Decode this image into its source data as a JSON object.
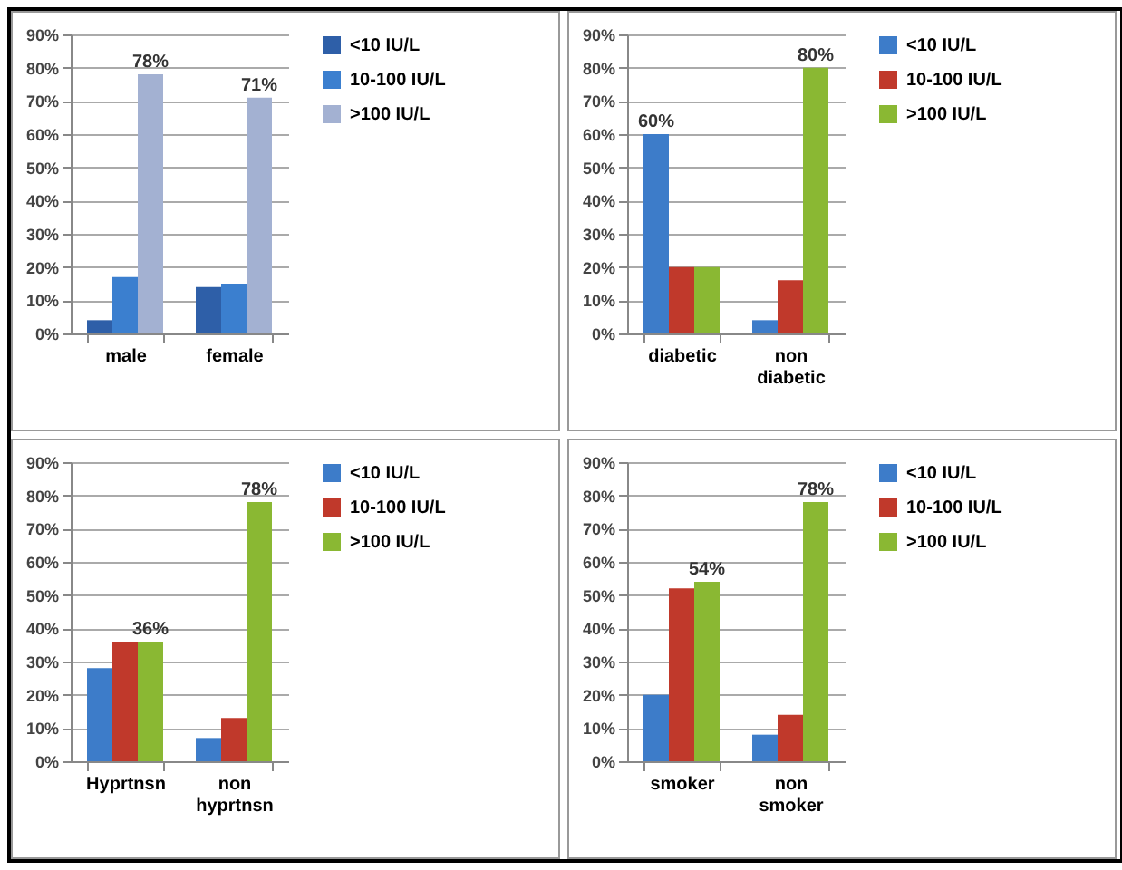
{
  "chart_data": [
    {
      "type": "bar",
      "categories": [
        "male",
        "female"
      ],
      "ylim": [
        0,
        90
      ],
      "yticks": [
        {
          "value": 0,
          "label": "0%"
        },
        {
          "value": 10,
          "label": "10%"
        },
        {
          "value": 20,
          "label": "20%"
        },
        {
          "value": 30,
          "label": "30%"
        },
        {
          "value": 40,
          "label": "40%"
        },
        {
          "value": 50,
          "label": "50%"
        },
        {
          "value": 60,
          "label": "60%"
        },
        {
          "value": 70,
          "label": "70%"
        },
        {
          "value": 80,
          "label": "80%"
        },
        {
          "value": 90,
          "label": "90%"
        }
      ],
      "grid": "y",
      "legend": "right",
      "series": [
        {
          "name": "<10 IU/L",
          "color": "#2e5fa8",
          "values": [
            4,
            14
          ]
        },
        {
          "name": "10-100 IU/L",
          "color": "#3b7fcf",
          "values": [
            17,
            15
          ]
        },
        {
          "name": ">100 IU/L",
          "color": "#a3b1d2",
          "values": [
            78,
            71
          ],
          "value_labels": [
            "78%",
            "71%"
          ]
        }
      ]
    },
    {
      "type": "bar",
      "categories": [
        "diabetic",
        "non diabetic"
      ],
      "ylim": [
        0,
        90
      ],
      "yticks": [
        {
          "value": 0,
          "label": "0%"
        },
        {
          "value": 10,
          "label": "10%"
        },
        {
          "value": 20,
          "label": "20%"
        },
        {
          "value": 30,
          "label": "30%"
        },
        {
          "value": 40,
          "label": "40%"
        },
        {
          "value": 50,
          "label": "50%"
        },
        {
          "value": 60,
          "label": "60%"
        },
        {
          "value": 70,
          "label": "70%"
        },
        {
          "value": 80,
          "label": "80%"
        },
        {
          "value": 90,
          "label": "90%"
        }
      ],
      "grid": "y",
      "legend": "right",
      "series": [
        {
          "name": "<10 IU/L",
          "color": "#3d7cc9",
          "values": [
            60,
            4
          ],
          "value_labels": [
            "60%",
            null
          ]
        },
        {
          "name": "10-100 IU/L",
          "color": "#c0392b",
          "values": [
            20,
            16
          ]
        },
        {
          "name": ">100 IU/L",
          "color": "#8ab833",
          "values": [
            20,
            80
          ],
          "value_labels": [
            null,
            "80%"
          ]
        }
      ]
    },
    {
      "type": "bar",
      "categories": [
        "Hyprtnsn",
        "non hyprtnsn"
      ],
      "ylim": [
        0,
        90
      ],
      "yticks": [
        {
          "value": 0,
          "label": "0%"
        },
        {
          "value": 10,
          "label": "10%"
        },
        {
          "value": 20,
          "label": "20%"
        },
        {
          "value": 30,
          "label": "30%"
        },
        {
          "value": 40,
          "label": "40%"
        },
        {
          "value": 50,
          "label": "50%"
        },
        {
          "value": 60,
          "label": "60%"
        },
        {
          "value": 70,
          "label": "70%"
        },
        {
          "value": 80,
          "label": "80%"
        },
        {
          "value": 90,
          "label": "90%"
        }
      ],
      "grid": "y",
      "legend": "right",
      "series": [
        {
          "name": "<10 IU/L",
          "color": "#3d7cc9",
          "values": [
            28,
            7
          ]
        },
        {
          "name": "10-100 IU/L",
          "color": "#c0392b",
          "values": [
            36,
            13
          ]
        },
        {
          "name": ">100 IU/L",
          "color": "#8ab833",
          "values": [
            36,
            78
          ],
          "value_labels": [
            "36%",
            "78%"
          ]
        }
      ]
    },
    {
      "type": "bar",
      "categories": [
        "smoker",
        "non smoker"
      ],
      "ylim": [
        0,
        90
      ],
      "yticks": [
        {
          "value": 0,
          "label": "0%"
        },
        {
          "value": 10,
          "label": "10%"
        },
        {
          "value": 20,
          "label": "20%"
        },
        {
          "value": 30,
          "label": "30%"
        },
        {
          "value": 40,
          "label": "40%"
        },
        {
          "value": 50,
          "label": "50%"
        },
        {
          "value": 60,
          "label": "60%"
        },
        {
          "value": 70,
          "label": "70%"
        },
        {
          "value": 80,
          "label": "80%"
        },
        {
          "value": 90,
          "label": "90%"
        }
      ],
      "grid": "y",
      "legend": "right",
      "series": [
        {
          "name": "<10 IU/L",
          "color": "#3d7cc9",
          "values": [
            20,
            8
          ]
        },
        {
          "name": "10-100 IU/L",
          "color": "#c0392b",
          "values": [
            52,
            14
          ]
        },
        {
          "name": ">100 IU/L",
          "color": "#8ab833",
          "values": [
            54,
            78
          ],
          "value_labels": [
            "54%",
            "78%"
          ]
        }
      ]
    }
  ]
}
